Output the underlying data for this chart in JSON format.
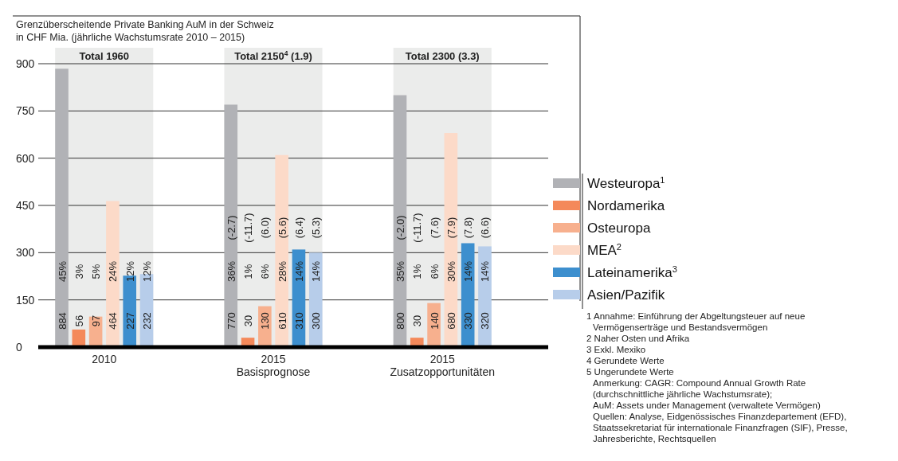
{
  "chart_data": {
    "type": "bar",
    "title": "Grenzüberscheitende Private Banking AuM in der Schweiz",
    "subtitle": "in CHF Mia. (jährliche Wachstumsrate 2010 – 2015)",
    "categories": [
      "2010",
      "2015 Basisprognose",
      "2015 Zusatzopportunitäten"
    ],
    "series": [
      {
        "name": "Westeuropa$^{1}$",
        "color": "#b1b2b6",
        "values": [
          884,
          770,
          800
        ],
        "value_labels": [
          [
            "884",
            "45%"
          ],
          [
            "770",
            "36%",
            "(-2.7)"
          ],
          [
            "800",
            "35%",
            "(-2.0)"
          ]
        ]
      },
      {
        "name": "Nordamerika",
        "color": "#f4895a",
        "values": [
          56,
          30,
          30
        ],
        "value_labels": [
          [
            "56",
            "3%"
          ],
          [
            "30",
            "1%",
            "(-11.7)"
          ],
          [
            "30",
            "1%",
            "(-11.7)"
          ]
        ]
      },
      {
        "name": "Osteuropa",
        "color": "#f7b08e",
        "values": [
          97,
          130,
          140
        ],
        "value_labels": [
          [
            "97",
            "5%"
          ],
          [
            "130",
            "6%",
            "(6.0)"
          ],
          [
            "140",
            "6%",
            "(7.6)"
          ]
        ]
      },
      {
        "name": "MEA$^{2}$",
        "color": "#fcdac8",
        "values": [
          464,
          610,
          680
        ],
        "value_labels": [
          [
            "464",
            "24%"
          ],
          [
            "610",
            "28%",
            "(5.6)"
          ],
          [
            "680",
            "30%",
            "(7.9)"
          ]
        ]
      },
      {
        "name": "Lateinamerika$^{3}$",
        "color": "#3d8fce",
        "values": [
          227,
          310,
          330
        ],
        "value_labels": [
          [
            "227",
            "12%"
          ],
          [
            "310",
            "14%",
            "(6.4)"
          ],
          [
            "330",
            "14%",
            "(7.8)"
          ]
        ]
      },
      {
        "name": "Asien/Pazifik",
        "color": "#b7cdea",
        "values": [
          232,
          300,
          320
        ],
        "value_labels": [
          [
            "232",
            "12%"
          ],
          [
            "300",
            "14%",
            "(5.3)"
          ],
          [
            "320",
            "14%",
            "(6.6)"
          ]
        ]
      }
    ],
    "ylim": [
      0,
      900
    ],
    "yticks": [
      0,
      150,
      300,
      450,
      600,
      750,
      900
    ],
    "grid": "y",
    "legend": "right",
    "annotations": [
      "Total 1960",
      "Total 2150$^{4}$ (1.9)",
      "Total 2300 (3.3)",
      "1 Annahme: Einführung der Abgeltungsteuer auf neue\nVermögenserträge und Bestandsvermögen",
      "2 Naher Osten und Afrika",
      "3 Exkl. Mexiko",
      "4 Gerundete Werte",
      "5 Ungerundete Werte",
      "Anmerkung: CAGR: Compound Annual Growth Rate\n(durchschnittliche jährliche Wachstumsrate);",
      "AuM: Assets under Management (verwaltete Vermögen)",
      "Quellen: Analyse, Eidgenössisches Finanzdepartement (EFD),\nStaatssekretariat für internationale Finanzfragen (SIF), Presse,\nJahresberichte, Rechtsquellen"
    ]
  }
}
